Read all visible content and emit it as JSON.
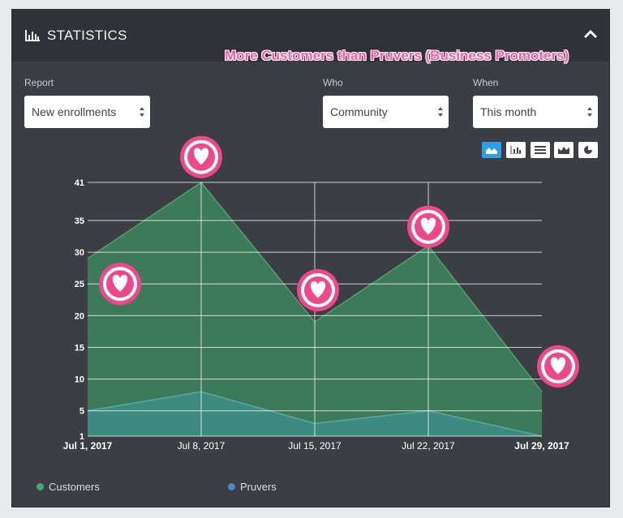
{
  "header": {
    "title": "STATISTICS",
    "title_icon": "bar-chart-icon",
    "collapse_icon": "chevron-up-icon",
    "annotation": "More Customers than Pruvers (Business Promoters)"
  },
  "filters": {
    "report": {
      "label": "Report",
      "value": "New enrollments"
    },
    "who": {
      "label": "Who",
      "value": "Community"
    },
    "when": {
      "label": "When",
      "value": "This month"
    }
  },
  "chart_types": [
    {
      "name": "area",
      "icon": "area-chart-icon",
      "active": true
    },
    {
      "name": "bar",
      "icon": "bar-chart-icon",
      "active": false
    },
    {
      "name": "table",
      "icon": "table-icon",
      "active": false
    },
    {
      "name": "stacked",
      "icon": "stacked-chart-icon",
      "active": false
    },
    {
      "name": "pie",
      "icon": "pie-chart-icon",
      "active": false
    }
  ],
  "colors": {
    "customers_fill": "#3d7a5a",
    "customers_line": "#4fa06e",
    "customers_legend": "#3dab6e",
    "pruvers_fill": "#3d8c84",
    "pruvers_line": "#57a8a0",
    "pruvers_legend": "#4f86c6",
    "heart": "#f0478c"
  },
  "chart_data": {
    "type": "area",
    "x": [
      "Jul 1, 2017",
      "Jul 8, 2017",
      "Jul 15, 2017",
      "Jul 22, 2017",
      "Jul 29, 2017"
    ],
    "bold_x_labels": [
      "Jul 1, 2017",
      "Jul 29, 2017"
    ],
    "series": [
      {
        "name": "Customers",
        "values": [
          29,
          41,
          19,
          31,
          8
        ]
      },
      {
        "name": "Pruvers",
        "values": [
          5,
          8,
          3,
          5,
          1
        ]
      }
    ],
    "yticks": [
      1,
      5,
      10,
      15,
      20,
      25,
      30,
      35,
      41
    ],
    "ylim": [
      1,
      41
    ],
    "grid": true,
    "legend": "bottom-left",
    "annotations": [
      {
        "icon": "heart-badge-icon",
        "near": "Jul 1, 2017",
        "y": 25
      },
      {
        "icon": "heart-badge-icon",
        "near": "Jul 8, 2017",
        "y": 45
      },
      {
        "icon": "heart-badge-icon",
        "near": "Jul 15, 2017",
        "y": 24
      },
      {
        "icon": "heart-badge-icon",
        "near": "Jul 22, 2017",
        "y": 34
      },
      {
        "icon": "heart-badge-icon",
        "near": "Jul 29, 2017",
        "y": 12
      }
    ]
  }
}
